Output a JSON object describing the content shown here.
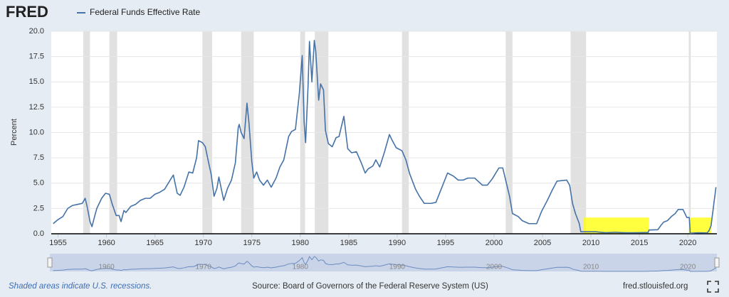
{
  "chart_data": {
    "type": "line",
    "logo": "FRED",
    "ylabel": "Percent",
    "series": [
      {
        "name": "Federal Funds Effective Rate",
        "color": "#4572a7",
        "values": [
          1.0,
          1.4,
          1.7,
          2.5,
          2.8,
          2.9,
          3.0,
          3.5,
          2.7,
          1.2,
          0.7,
          1.8,
          2.5,
          3.5,
          4.0,
          3.9,
          2.9,
          1.8,
          1.8,
          1.2,
          2.3,
          2.1,
          2.7,
          2.9,
          3.3,
          3.5,
          3.5,
          3.9,
          4.1,
          4.4,
          5.5,
          5.8,
          4.0,
          3.8,
          4.6,
          6.1,
          6.0,
          7.5,
          9.2,
          9.0,
          8.6,
          7.2,
          5.9,
          3.7,
          4.5,
          5.6,
          4.2,
          3.3,
          4.5,
          5.3,
          7.0,
          10.5,
          10.8,
          10.0,
          9.4,
          12.9,
          11.0,
          7.1,
          5.5,
          6.1,
          5.3,
          4.8,
          5.3,
          4.6,
          5.5,
          6.6,
          7.3,
          9.6,
          10.1,
          10.3,
          13.8,
          17.6,
          11.0,
          9.0,
          14.5,
          19.0,
          15.0,
          19.1,
          18.0,
          13.2,
          14.8,
          14.2,
          10.2,
          8.9,
          8.6,
          9.5,
          9.6,
          11.6,
          8.4,
          8.0,
          8.1,
          7.0,
          6.0,
          6.4,
          6.7,
          7.3,
          6.6,
          8.1,
          9.8,
          9.2,
          8.5,
          8.2,
          7.3,
          5.9,
          4.4,
          3.7,
          3.0,
          3.0,
          3.1,
          4.3,
          6.0,
          5.7,
          5.3,
          5.3,
          5.5,
          5.5,
          4.8,
          4.8,
          5.4,
          6.5,
          6.5,
          5.3,
          3.7,
          2.0,
          1.7,
          1.3,
          1.0,
          1.0,
          2.2,
          3.3,
          4.3,
          5.2,
          5.3,
          4.8,
          3.0,
          2.0,
          1.0,
          0.2,
          0.2,
          0.2,
          0.1,
          0.15,
          0.1,
          0.1,
          0.13,
          0.37,
          0.4,
          0.8,
          1.15,
          1.3,
          1.7,
          2.0,
          2.4,
          2.4,
          2.0,
          1.6,
          1.6,
          0.05,
          0.1,
          0.08,
          0.33,
          0.8,
          1.6,
          2.3,
          3.1,
          3.8,
          4.6
        ]
      }
    ],
    "x": [
      1954.5,
      1955.0,
      1955.5,
      1956.0,
      1956.5,
      1957.0,
      1957.5,
      1957.8,
      1958.0,
      1958.3,
      1958.5,
      1958.8,
      1959.0,
      1959.5,
      1959.9,
      1960.3,
      1960.6,
      1961.0,
      1961.3,
      1961.5,
      1961.8,
      1962.0,
      1962.5,
      1963.0,
      1963.5,
      1964.0,
      1964.5,
      1965.0,
      1965.5,
      1966.0,
      1966.7,
      1966.9,
      1967.3,
      1967.6,
      1968.0,
      1968.5,
      1968.9,
      1969.3,
      1969.5,
      1969.9,
      1970.2,
      1970.5,
      1970.8,
      1971.1,
      1971.4,
      1971.6,
      1971.9,
      1972.1,
      1972.5,
      1972.9,
      1973.3,
      1973.6,
      1973.7,
      1973.9,
      1974.2,
      1974.5,
      1974.7,
      1975.0,
      1975.2,
      1975.5,
      1975.8,
      1976.2,
      1976.6,
      1977.0,
      1977.5,
      1977.9,
      1978.3,
      1978.8,
      1979.1,
      1979.5,
      1979.9,
      1980.2,
      1980.4,
      1980.55,
      1980.8,
      1980.95,
      1981.2,
      1981.45,
      1981.6,
      1981.9,
      1982.1,
      1982.4,
      1982.6,
      1982.9,
      1983.3,
      1983.7,
      1984.0,
      1984.5,
      1984.9,
      1985.3,
      1985.8,
      1986.3,
      1986.7,
      1987.0,
      1987.5,
      1987.8,
      1988.2,
      1988.7,
      1989.2,
      1989.5,
      1989.9,
      1990.5,
      1990.9,
      1991.3,
      1991.9,
      1992.3,
      1992.8,
      1993.5,
      1994.0,
      1994.5,
      1995.2,
      1995.8,
      1996.3,
      1996.8,
      1997.3,
      1998.0,
      1998.8,
      1999.3,
      1999.8,
      2000.5,
      2000.9,
      2001.2,
      2001.6,
      2001.9,
      2002.5,
      2002.9,
      2003.6,
      2004.4,
      2004.9,
      2005.5,
      2006.0,
      2006.5,
      2007.5,
      2007.8,
      2008.1,
      2008.4,
      2008.8,
      2008.95,
      2009.5,
      2010.5,
      2011.5,
      2012.5,
      2013.5,
      2014.5,
      2015.9,
      2016.0,
      2016.9,
      2017.2,
      2017.5,
      2017.9,
      2018.3,
      2018.7,
      2019.0,
      2019.5,
      2019.7,
      2019.9,
      2020.15,
      2020.25,
      2021.0,
      2022.0,
      2022.2,
      2022.4,
      2022.5,
      2022.6,
      2022.7,
      2022.8,
      2022.9
    ],
    "xlim": [
      1954.3,
      2023.0
    ],
    "xticks": [
      1955,
      1960,
      1965,
      1970,
      1975,
      1980,
      1985,
      1990,
      1995,
      2000,
      2005,
      2010,
      2015,
      2020
    ],
    "ylim": [
      0,
      20
    ],
    "yticks": [
      {
        "value": 0,
        "label": "0.0"
      },
      2.5,
      {
        "value": 5,
        "label": "5.0"
      },
      7.5,
      {
        "value": 10,
        "label": "10.0"
      },
      12.5,
      {
        "value": 15,
        "label": "15.0"
      },
      17.5,
      {
        "value": 20,
        "label": "20.0"
      }
    ],
    "grid": true,
    "recessions": [
      [
        1957.6,
        1958.3
      ],
      [
        1960.3,
        1961.1
      ],
      [
        1969.9,
        1970.9
      ],
      [
        1973.9,
        1975.2
      ],
      [
        1980.0,
        1980.5
      ],
      [
        1981.5,
        1982.9
      ],
      [
        1990.5,
        1991.2
      ],
      [
        2001.2,
        2001.9
      ],
      [
        2007.9,
        2009.5
      ],
      [
        2020.1,
        2020.3
      ]
    ],
    "highlights": [
      {
        "x": [
          2009.25,
          2016.0
        ],
        "y": [
          0,
          1.6
        ],
        "color": "#ffff00"
      },
      {
        "x": [
          2020.15,
          2022.4
        ],
        "y": [
          0,
          1.6
        ],
        "color": "#ffff00"
      }
    ],
    "navigator_ticks": [
      1960,
      1970,
      1980,
      1990,
      2000,
      2010,
      2020
    ],
    "recession_note": "Shaded areas indicate U.S. recessions.",
    "source": "Source: Board of Governors of the Federal Reserve System (US)",
    "site": "fred.stlouisfed.org"
  }
}
